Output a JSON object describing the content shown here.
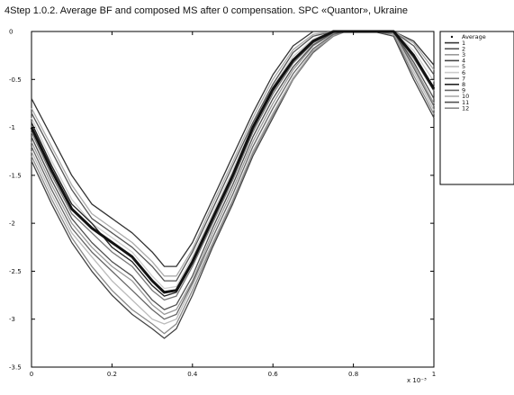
{
  "chart_data": {
    "type": "line",
    "title": "4Step 1.0.2. Average BF and composed MS after 0 compensation. SPC «Quantor», Ukraine",
    "xlabel": "",
    "ylabel": "",
    "x_scale_label": "x 10⁻³",
    "xlim": [
      0,
      1
    ],
    "ylim": [
      -3.5,
      0
    ],
    "x_ticks": [
      "0",
      "0.2",
      "0.4",
      "0.6",
      "0.8",
      "1"
    ],
    "y_ticks": [
      "0",
      "-0.5",
      "-1",
      "-1.5",
      "-2",
      "-2.5",
      "-3",
      "-3.5"
    ],
    "grid": false,
    "legend_position": "right",
    "x": [
      0,
      0.05,
      0.1,
      0.15,
      0.2,
      0.25,
      0.3,
      0.33,
      0.36,
      0.4,
      0.45,
      0.5,
      0.55,
      0.6,
      0.65,
      0.7,
      0.75,
      0.78,
      0.85,
      0.9,
      0.95,
      1.0
    ],
    "series": [
      {
        "name": "Average",
        "color": "#111111",
        "values": [
          -1.0,
          -1.45,
          -1.85,
          -2.05,
          -2.2,
          -2.35,
          -2.6,
          -2.72,
          -2.7,
          -2.4,
          -1.95,
          -1.5,
          -1.0,
          -0.6,
          -0.3,
          -0.1,
          0.0,
          0.0,
          0.0,
          0.0,
          -0.25,
          -0.6
        ]
      },
      {
        "name": "1",
        "color": "#333333",
        "values": [
          -0.7,
          -1.1,
          -1.5,
          -1.8,
          -1.95,
          -2.1,
          -2.3,
          -2.45,
          -2.45,
          -2.2,
          -1.75,
          -1.3,
          -0.85,
          -0.45,
          -0.15,
          0.0,
          0.0,
          0.0,
          0.0,
          0.0,
          -0.1,
          -0.35
        ]
      },
      {
        "name": "2",
        "color": "#555555",
        "values": [
          -0.85,
          -1.25,
          -1.65,
          -1.95,
          -2.1,
          -2.25,
          -2.45,
          -2.6,
          -2.6,
          -2.3,
          -1.85,
          -1.4,
          -0.95,
          -0.55,
          -0.22,
          -0.05,
          0.0,
          0.0,
          0.0,
          0.0,
          -0.15,
          -0.45
        ]
      },
      {
        "name": "3",
        "color": "#999999",
        "values": [
          -1.15,
          -1.6,
          -2.0,
          -2.25,
          -2.45,
          -2.6,
          -2.85,
          -2.95,
          -2.9,
          -2.6,
          -2.1,
          -1.65,
          -1.15,
          -0.75,
          -0.4,
          -0.15,
          -0.02,
          0.0,
          0.0,
          0.0,
          -0.35,
          -0.75
        ]
      },
      {
        "name": "4",
        "color": "#444444",
        "values": [
          -1.35,
          -1.8,
          -2.2,
          -2.5,
          -2.75,
          -2.95,
          -3.1,
          -3.2,
          -3.1,
          -2.75,
          -2.25,
          -1.8,
          -1.3,
          -0.9,
          -0.5,
          -0.22,
          -0.05,
          0.0,
          0.0,
          -0.05,
          -0.5,
          -0.9
        ]
      },
      {
        "name": "5",
        "color": "#bbbbbb",
        "values": [
          -1.25,
          -1.7,
          -2.1,
          -2.35,
          -2.6,
          -2.8,
          -3.0,
          -3.05,
          -3.0,
          -2.65,
          -2.2,
          -1.75,
          -1.25,
          -0.85,
          -0.48,
          -0.2,
          -0.04,
          0.0,
          0.0,
          -0.02,
          -0.42,
          -0.82
        ]
      },
      {
        "name": "6",
        "color": "#cccccc",
        "values": [
          -0.9,
          -1.35,
          -1.75,
          -2.0,
          -2.15,
          -2.3,
          -2.55,
          -2.68,
          -2.66,
          -2.35,
          -1.9,
          -1.45,
          -0.98,
          -0.58,
          -0.26,
          -0.08,
          0.0,
          0.0,
          0.0,
          0.0,
          -0.2,
          -0.52
        ]
      },
      {
        "name": "7",
        "color": "#777777",
        "values": [
          -1.05,
          -1.5,
          -1.9,
          -2.1,
          -2.3,
          -2.45,
          -2.7,
          -2.8,
          -2.76,
          -2.45,
          -2.0,
          -1.55,
          -1.05,
          -0.65,
          -0.33,
          -0.12,
          0.0,
          0.0,
          0.0,
          0.0,
          -0.28,
          -0.62
        ]
      },
      {
        "name": "8",
        "color": "#222222",
        "values": [
          -0.95,
          -1.4,
          -1.8,
          -2.0,
          -2.25,
          -2.4,
          -2.65,
          -2.76,
          -2.72,
          -2.42,
          -1.97,
          -1.52,
          -1.02,
          -0.62,
          -0.31,
          -0.11,
          0.0,
          0.0,
          0.0,
          0.0,
          -0.26,
          -0.58
        ]
      },
      {
        "name": "9",
        "color": "#666666",
        "values": [
          -1.2,
          -1.65,
          -2.05,
          -2.3,
          -2.5,
          -2.7,
          -2.9,
          -3.0,
          -2.95,
          -2.62,
          -2.15,
          -1.7,
          -1.2,
          -0.8,
          -0.44,
          -0.18,
          -0.03,
          0.0,
          0.0,
          0.0,
          -0.38,
          -0.78
        ]
      },
      {
        "name": "10",
        "color": "#aaaaaa",
        "values": [
          -0.8,
          -1.2,
          -1.6,
          -1.9,
          -2.05,
          -2.2,
          -2.4,
          -2.55,
          -2.55,
          -2.27,
          -1.8,
          -1.36,
          -0.9,
          -0.5,
          -0.19,
          -0.03,
          0.0,
          0.0,
          0.0,
          0.0,
          -0.12,
          -0.4
        ]
      },
      {
        "name": "11",
        "color": "#505050",
        "values": [
          -1.1,
          -1.55,
          -1.95,
          -2.2,
          -2.4,
          -2.55,
          -2.8,
          -2.9,
          -2.85,
          -2.55,
          -2.05,
          -1.6,
          -1.1,
          -0.7,
          -0.37,
          -0.14,
          -0.01,
          0.0,
          0.0,
          0.0,
          -0.32,
          -0.7
        ]
      },
      {
        "name": "12",
        "color": "#8a8a8a",
        "values": [
          -1.3,
          -1.75,
          -2.15,
          -2.45,
          -2.7,
          -2.9,
          -3.05,
          -3.15,
          -3.05,
          -2.7,
          -2.22,
          -1.77,
          -1.27,
          -0.87,
          -0.5,
          -0.21,
          -0.05,
          0.0,
          0.0,
          -0.03,
          -0.46,
          -0.86
        ]
      }
    ]
  }
}
